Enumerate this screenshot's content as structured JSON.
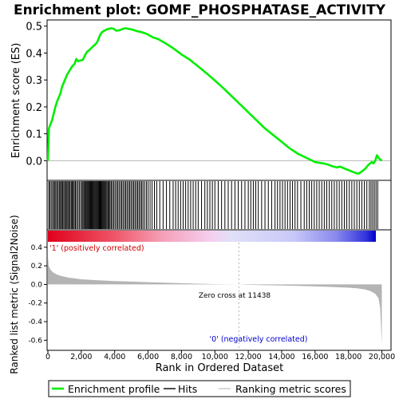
{
  "colors": {
    "enrichment": "#00ee00",
    "hits": "#000000",
    "metric_fill": "#b4b4b4",
    "zero_line": "#b4b4b4",
    "axis": "#000000",
    "positive_label": "#cc0000",
    "negative_label": "#0000cc"
  },
  "chart_data": [
    {
      "type": "line",
      "title": "Enrichment plot: GOMF_PHOSPHATASE_ACTIVITY",
      "ylabel": "Enrichment score (ES)",
      "xlim": [
        0,
        20500
      ],
      "ylim": [
        -0.07,
        0.52
      ],
      "yticks": [
        0.0,
        0.1,
        0.2,
        0.3,
        0.4,
        0.5
      ],
      "ytick_labels": [
        "0.0",
        "0.1",
        "0.2",
        "0.3",
        "0.4",
        "0.5"
      ],
      "series": [
        {
          "kind": "enrichment_profile",
          "x": [
            0,
            60,
            150,
            250,
            350,
            450,
            550,
            650,
            750,
            850,
            950,
            1050,
            1150,
            1300,
            1450,
            1600,
            1700,
            1800,
            1950,
            2100,
            2250,
            2350,
            2500,
            2650,
            2800,
            2950,
            3050,
            3150,
            3250,
            3350,
            3500,
            3650,
            3800,
            3950,
            4100,
            4300,
            4500,
            4650,
            4800,
            5000,
            5300,
            5600,
            5900,
            6100,
            6300,
            6600,
            7000,
            7500,
            8000,
            8500,
            9000,
            9500,
            10000,
            10500,
            11000,
            11500,
            12000,
            12500,
            13000,
            13500,
            14000,
            14500,
            15000,
            15500,
            16000,
            16500,
            16800,
            17000,
            17300,
            17500,
            17800,
            18000,
            18200,
            18400,
            18600,
            18800,
            19000,
            19200,
            19400,
            19500,
            19600,
            19700,
            19800,
            20000
          ],
          "y": [
            0.0,
            0.12,
            0.135,
            0.15,
            0.175,
            0.2,
            0.22,
            0.235,
            0.25,
            0.275,
            0.29,
            0.305,
            0.32,
            0.335,
            0.35,
            0.36,
            0.378,
            0.37,
            0.372,
            0.375,
            0.395,
            0.405,
            0.412,
            0.422,
            0.43,
            0.44,
            0.455,
            0.47,
            0.478,
            0.482,
            0.487,
            0.49,
            0.492,
            0.49,
            0.483,
            0.485,
            0.49,
            0.492,
            0.49,
            0.488,
            0.482,
            0.478,
            0.472,
            0.465,
            0.458,
            0.452,
            0.438,
            0.418,
            0.395,
            0.375,
            0.35,
            0.325,
            0.298,
            0.27,
            0.24,
            0.21,
            0.18,
            0.15,
            0.12,
            0.095,
            0.07,
            0.045,
            0.025,
            0.01,
            -0.005,
            -0.01,
            -0.015,
            -0.02,
            -0.025,
            -0.022,
            -0.03,
            -0.035,
            -0.04,
            -0.045,
            -0.048,
            -0.04,
            -0.03,
            -0.015,
            -0.005,
            -0.01,
            0.0,
            0.02,
            0.01,
            0.0
          ]
        }
      ]
    },
    {
      "type": "hits",
      "description_labels": [],
      "xlim": [
        0,
        20500
      ],
      "hit_positions": [
        50,
        120,
        200,
        280,
        350,
        420,
        480,
        560,
        620,
        700,
        760,
        820,
        880,
        950,
        1010,
        1080,
        1140,
        1200,
        1270,
        1330,
        1400,
        1460,
        1520,
        1580,
        1650,
        1720,
        1800,
        1880,
        1960,
        2040,
        2100,
        2160,
        2220,
        2280,
        2330,
        2380,
        2430,
        2480,
        2530,
        2580,
        2630,
        2680,
        2730,
        2780,
        2830,
        2880,
        2930,
        2980,
        3030,
        3080,
        3130,
        3180,
        3230,
        3280,
        3330,
        3380,
        3430,
        3480,
        3540,
        3600,
        3660,
        3720,
        3790,
        3860,
        3940,
        4020,
        4100,
        4180,
        4260,
        4340,
        4420,
        4500,
        4580,
        4660,
        4740,
        4820,
        4900,
        4980,
        5060,
        5140,
        5220,
        5300,
        5380,
        5460,
        5540,
        5620,
        5700,
        5800,
        5900,
        6000,
        6120,
        6240,
        6380,
        6520,
        6700,
        6900,
        7100,
        7300,
        7500,
        7650,
        7800,
        7950,
        8100,
        8250,
        8400,
        8550,
        8700,
        8850,
        9000,
        9200,
        9400,
        9550,
        9700,
        9850,
        10000,
        10200,
        10400,
        10600,
        10800,
        11000,
        11200,
        11400,
        11600,
        11800,
        12000,
        12150,
        12300,
        12450,
        12600,
        12800,
        13000,
        13200,
        13400,
        13600,
        13750,
        13900,
        14050,
        14200,
        14350,
        14500,
        14650,
        14800,
        14950,
        15150,
        15350,
        15500,
        15650,
        15800,
        15950,
        16100,
        16250,
        16400,
        16550,
        16700,
        16850,
        17000,
        17150,
        17300,
        17450,
        17600,
        17750,
        17900,
        18050,
        18200,
        18350,
        18500,
        18650,
        18800,
        18950,
        19100,
        19250,
        19350,
        19450,
        19550,
        19650,
        19750
      ]
    },
    {
      "type": "area",
      "ylabel": "Ranked list metric (Signal2Noise)",
      "xlabel": "Rank in Ordered Dataset",
      "xlim": [
        0,
        20500
      ],
      "ylim": [
        -0.7,
        0.45
      ],
      "xticks": [
        0,
        2000,
        4000,
        6000,
        8000,
        10000,
        12000,
        14000,
        16000,
        18000,
        20000
      ],
      "xtick_labels": [
        "0",
        "2,000",
        "4,000",
        "6,000",
        "8,000",
        "10,000",
        "12,000",
        "14,000",
        "16,000",
        "18,000",
        "20,000"
      ],
      "yticks": [
        0.4,
        0.2,
        0.0,
        -0.2,
        -0.4,
        -0.6
      ],
      "ytick_labels": [
        "0.4",
        "0.2",
        "0.0",
        "-0.2",
        "-0.4",
        "-0.6"
      ],
      "zero_cross_label": "Zero cross at 11438",
      "zero_cross": 11438,
      "positive_label": "'1' (positively correlated)",
      "negative_label": "'0' (negatively correlated)",
      "series": [
        {
          "kind": "ranking_metric",
          "x": [
            0,
            50,
            150,
            300,
            500,
            800,
            1200,
            1600,
            2000,
            3000,
            4000,
            5000,
            6000,
            7000,
            8000,
            9000,
            10000,
            11000,
            11438,
            12000,
            13000,
            14000,
            15000,
            16000,
            17000,
            18000,
            18500,
            19000,
            19300,
            19600,
            19800,
            19900,
            20000
          ],
          "y": [
            0.3,
            0.2,
            0.16,
            0.13,
            0.11,
            0.09,
            0.075,
            0.065,
            0.055,
            0.045,
            0.036,
            0.03,
            0.024,
            0.018,
            0.013,
            0.008,
            0.004,
            0.001,
            0.0,
            -0.004,
            -0.008,
            -0.012,
            -0.016,
            -0.021,
            -0.027,
            -0.035,
            -0.042,
            -0.055,
            -0.07,
            -0.1,
            -0.15,
            -0.25,
            -0.65
          ]
        }
      ]
    }
  ],
  "legend": {
    "items": [
      {
        "label": "Enrichment profile",
        "style": "green-line"
      },
      {
        "label": "Hits",
        "style": "black-line"
      },
      {
        "label": "Ranking metric scores",
        "style": "gray-line"
      }
    ]
  }
}
